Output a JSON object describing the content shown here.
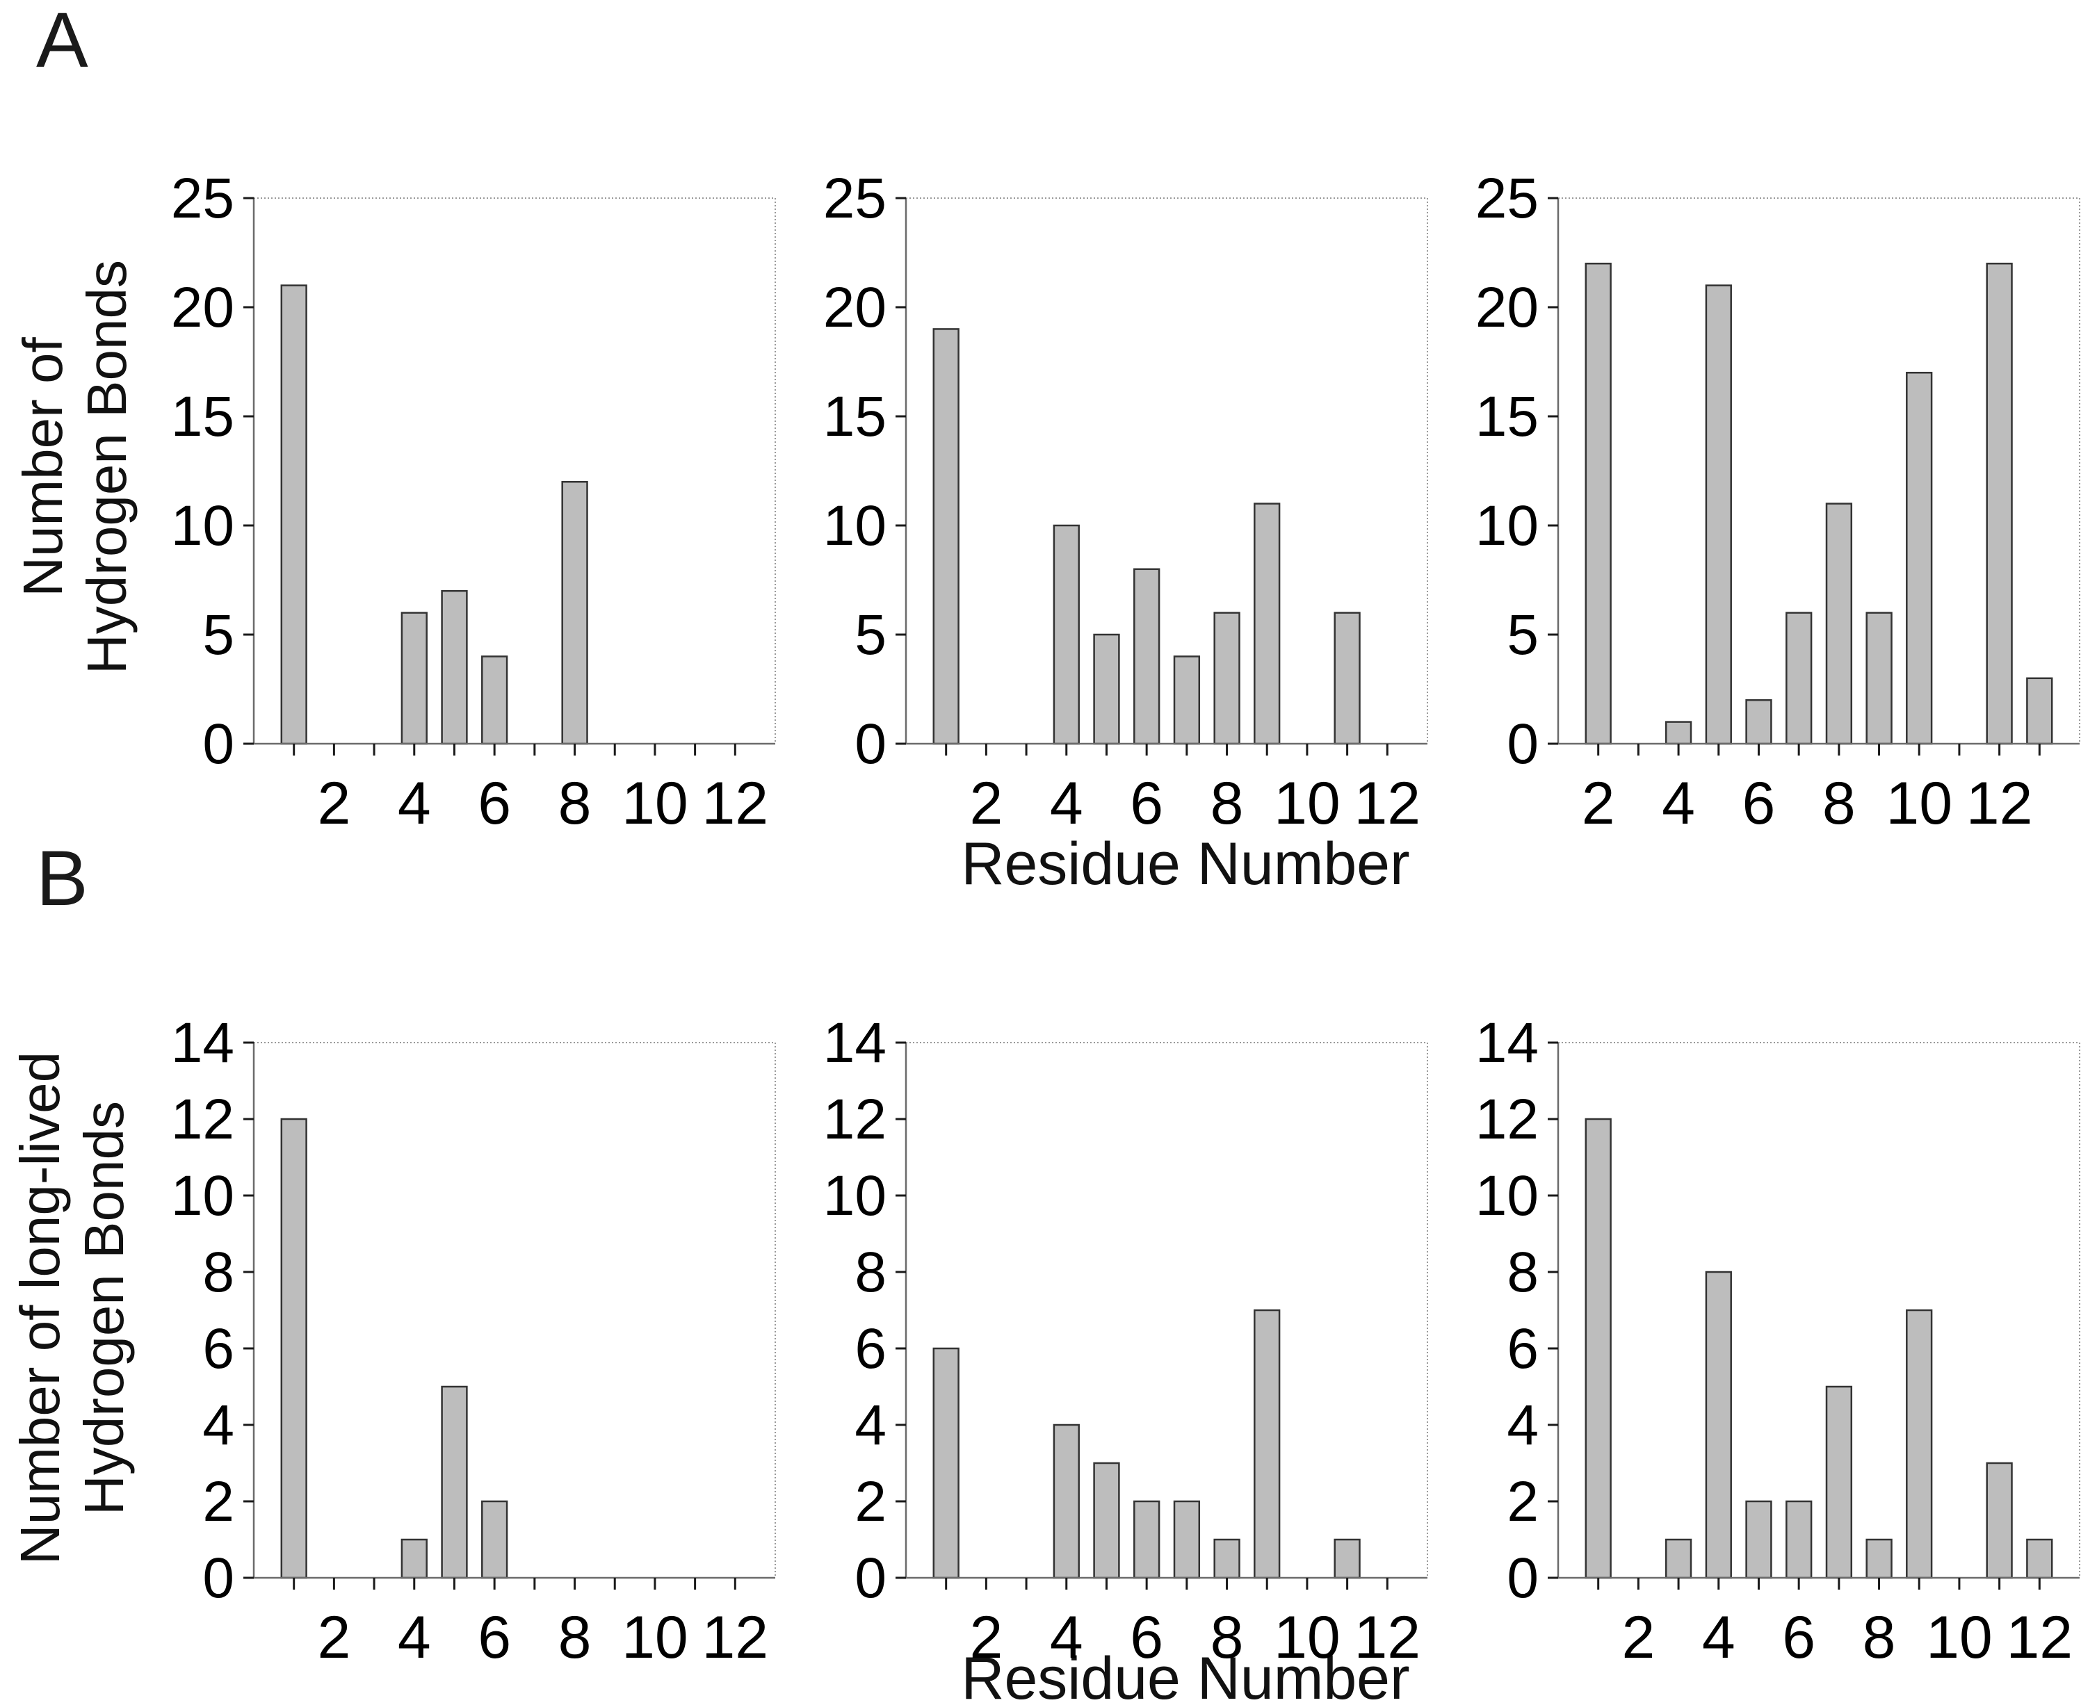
{
  "figure": {
    "background": "#ffffff",
    "bar_fill": "#bdbdbd",
    "bar_stroke": "#333333",
    "frame_color": "#9a9a9a",
    "axis_color": "#6b6b6b",
    "tick_color": "#1a1a1a",
    "text_color": "#000000"
  },
  "panels": {
    "a": {
      "label": "A",
      "ylabel_line1": "Number of",
      "ylabel_line2": "Hydrogen Bonds",
      "xlabel": "Residue Number"
    },
    "b": {
      "label": "B",
      "ylabel_line1": "Number of long-lived",
      "ylabel_line2": "Hydrogen Bonds",
      "xlabel": "Residue Number"
    }
  },
  "chart_data": [
    {
      "id": "chart-a1",
      "type": "bar",
      "panel": "A",
      "title": "",
      "xlabel": "Residue Number",
      "ylabel": "Number of Hydrogen Bonds",
      "ylim": [
        0,
        25
      ],
      "yticks": [
        0,
        5,
        10,
        15,
        20,
        25
      ],
      "xlim": [
        0,
        13
      ],
      "xticks": [
        1,
        2,
        3,
        4,
        5,
        6,
        7,
        8,
        9,
        10,
        11,
        12
      ],
      "xlabel_ticks": [
        2,
        4,
        6,
        8,
        10,
        12
      ],
      "categories": [
        1,
        2,
        3,
        4,
        5,
        6,
        7,
        8,
        9,
        10,
        11,
        12
      ],
      "values": [
        21,
        0,
        0,
        6,
        7,
        4,
        0,
        12,
        0,
        0,
        0,
        0
      ]
    },
    {
      "id": "chart-a2",
      "type": "bar",
      "panel": "A",
      "title": "",
      "xlabel": "Residue Number",
      "ylabel": "Number of Hydrogen Bonds",
      "ylim": [
        0,
        25
      ],
      "yticks": [
        0,
        5,
        10,
        15,
        20,
        25
      ],
      "xlim": [
        0,
        13
      ],
      "xticks": [
        1,
        2,
        3,
        4,
        5,
        6,
        7,
        8,
        9,
        10,
        11,
        12
      ],
      "xlabel_ticks": [
        2,
        4,
        6,
        8,
        10,
        12
      ],
      "categories": [
        1,
        2,
        3,
        4,
        5,
        6,
        7,
        8,
        9,
        10,
        11,
        12
      ],
      "values": [
        19,
        0,
        0,
        10,
        5,
        8,
        4,
        6,
        11,
        0,
        6,
        0
      ]
    },
    {
      "id": "chart-a3",
      "type": "bar",
      "panel": "A",
      "title": "",
      "xlabel": "Residue Number",
      "ylabel": "Number of Hydrogen Bonds",
      "ylim": [
        0,
        25
      ],
      "yticks": [
        0,
        5,
        10,
        15,
        20,
        25
      ],
      "xlim": [
        1,
        14
      ],
      "xticks": [
        2,
        3,
        4,
        5,
        6,
        7,
        8,
        9,
        10,
        11,
        12,
        13
      ],
      "xlabel_ticks": [
        2,
        4,
        6,
        8,
        10,
        12
      ],
      "categories": [
        1,
        2,
        3,
        4,
        5,
        6,
        7,
        8,
        9,
        10,
        11,
        12,
        13
      ],
      "values": [
        0,
        22,
        0,
        1,
        21,
        2,
        6,
        11,
        6,
        17,
        0,
        22,
        3
      ]
    },
    {
      "id": "chart-b1",
      "type": "bar",
      "panel": "B",
      "title": "",
      "xlabel": "Residue Number",
      "ylabel": "Number of long-lived Hydrogen Bonds",
      "ylim": [
        0,
        14
      ],
      "yticks": [
        0,
        2,
        4,
        6,
        8,
        10,
        12,
        14
      ],
      "xlim": [
        0,
        13
      ],
      "xticks": [
        1,
        2,
        3,
        4,
        5,
        6,
        7,
        8,
        9,
        10,
        11,
        12
      ],
      "xlabel_ticks": [
        2,
        4,
        6,
        8,
        10,
        12
      ],
      "categories": [
        1,
        2,
        3,
        4,
        5,
        6,
        7,
        8,
        9,
        10,
        11,
        12
      ],
      "values": [
        12,
        0,
        0,
        1,
        5,
        2,
        0,
        0,
        0,
        0,
        0,
        0
      ]
    },
    {
      "id": "chart-b2",
      "type": "bar",
      "panel": "B",
      "title": "",
      "xlabel": "Residue Number",
      "ylabel": "Number of long-lived Hydrogen Bonds",
      "ylim": [
        0,
        14
      ],
      "yticks": [
        0,
        2,
        4,
        6,
        8,
        10,
        12,
        14
      ],
      "xlim": [
        0,
        13
      ],
      "xticks": [
        1,
        2,
        3,
        4,
        5,
        6,
        7,
        8,
        9,
        10,
        11,
        12
      ],
      "xlabel_ticks": [
        2,
        4,
        6,
        8,
        10,
        12
      ],
      "categories": [
        1,
        2,
        3,
        4,
        5,
        6,
        7,
        8,
        9,
        10,
        11,
        12
      ],
      "values": [
        6,
        0,
        0,
        4,
        3,
        2,
        2,
        1,
        7,
        0,
        1,
        0
      ]
    },
    {
      "id": "chart-b3",
      "type": "bar",
      "panel": "B",
      "title": "",
      "xlabel": "Residue Number",
      "ylabel": "Number of long-lived Hydrogen Bonds",
      "ylim": [
        0,
        14
      ],
      "yticks": [
        0,
        2,
        4,
        6,
        8,
        10,
        12,
        14
      ],
      "xlim": [
        0,
        13
      ],
      "xticks": [
        1,
        2,
        3,
        4,
        5,
        6,
        7,
        8,
        9,
        10,
        11,
        12
      ],
      "xlabel_ticks": [
        2,
        4,
        6,
        8,
        10,
        12
      ],
      "categories": [
        1,
        2,
        3,
        4,
        5,
        6,
        7,
        8,
        9,
        10,
        11,
        12,
        13
      ],
      "values": [
        12,
        0,
        1,
        8,
        2,
        2,
        5,
        1,
        7,
        0,
        3,
        1,
        0
      ]
    }
  ]
}
